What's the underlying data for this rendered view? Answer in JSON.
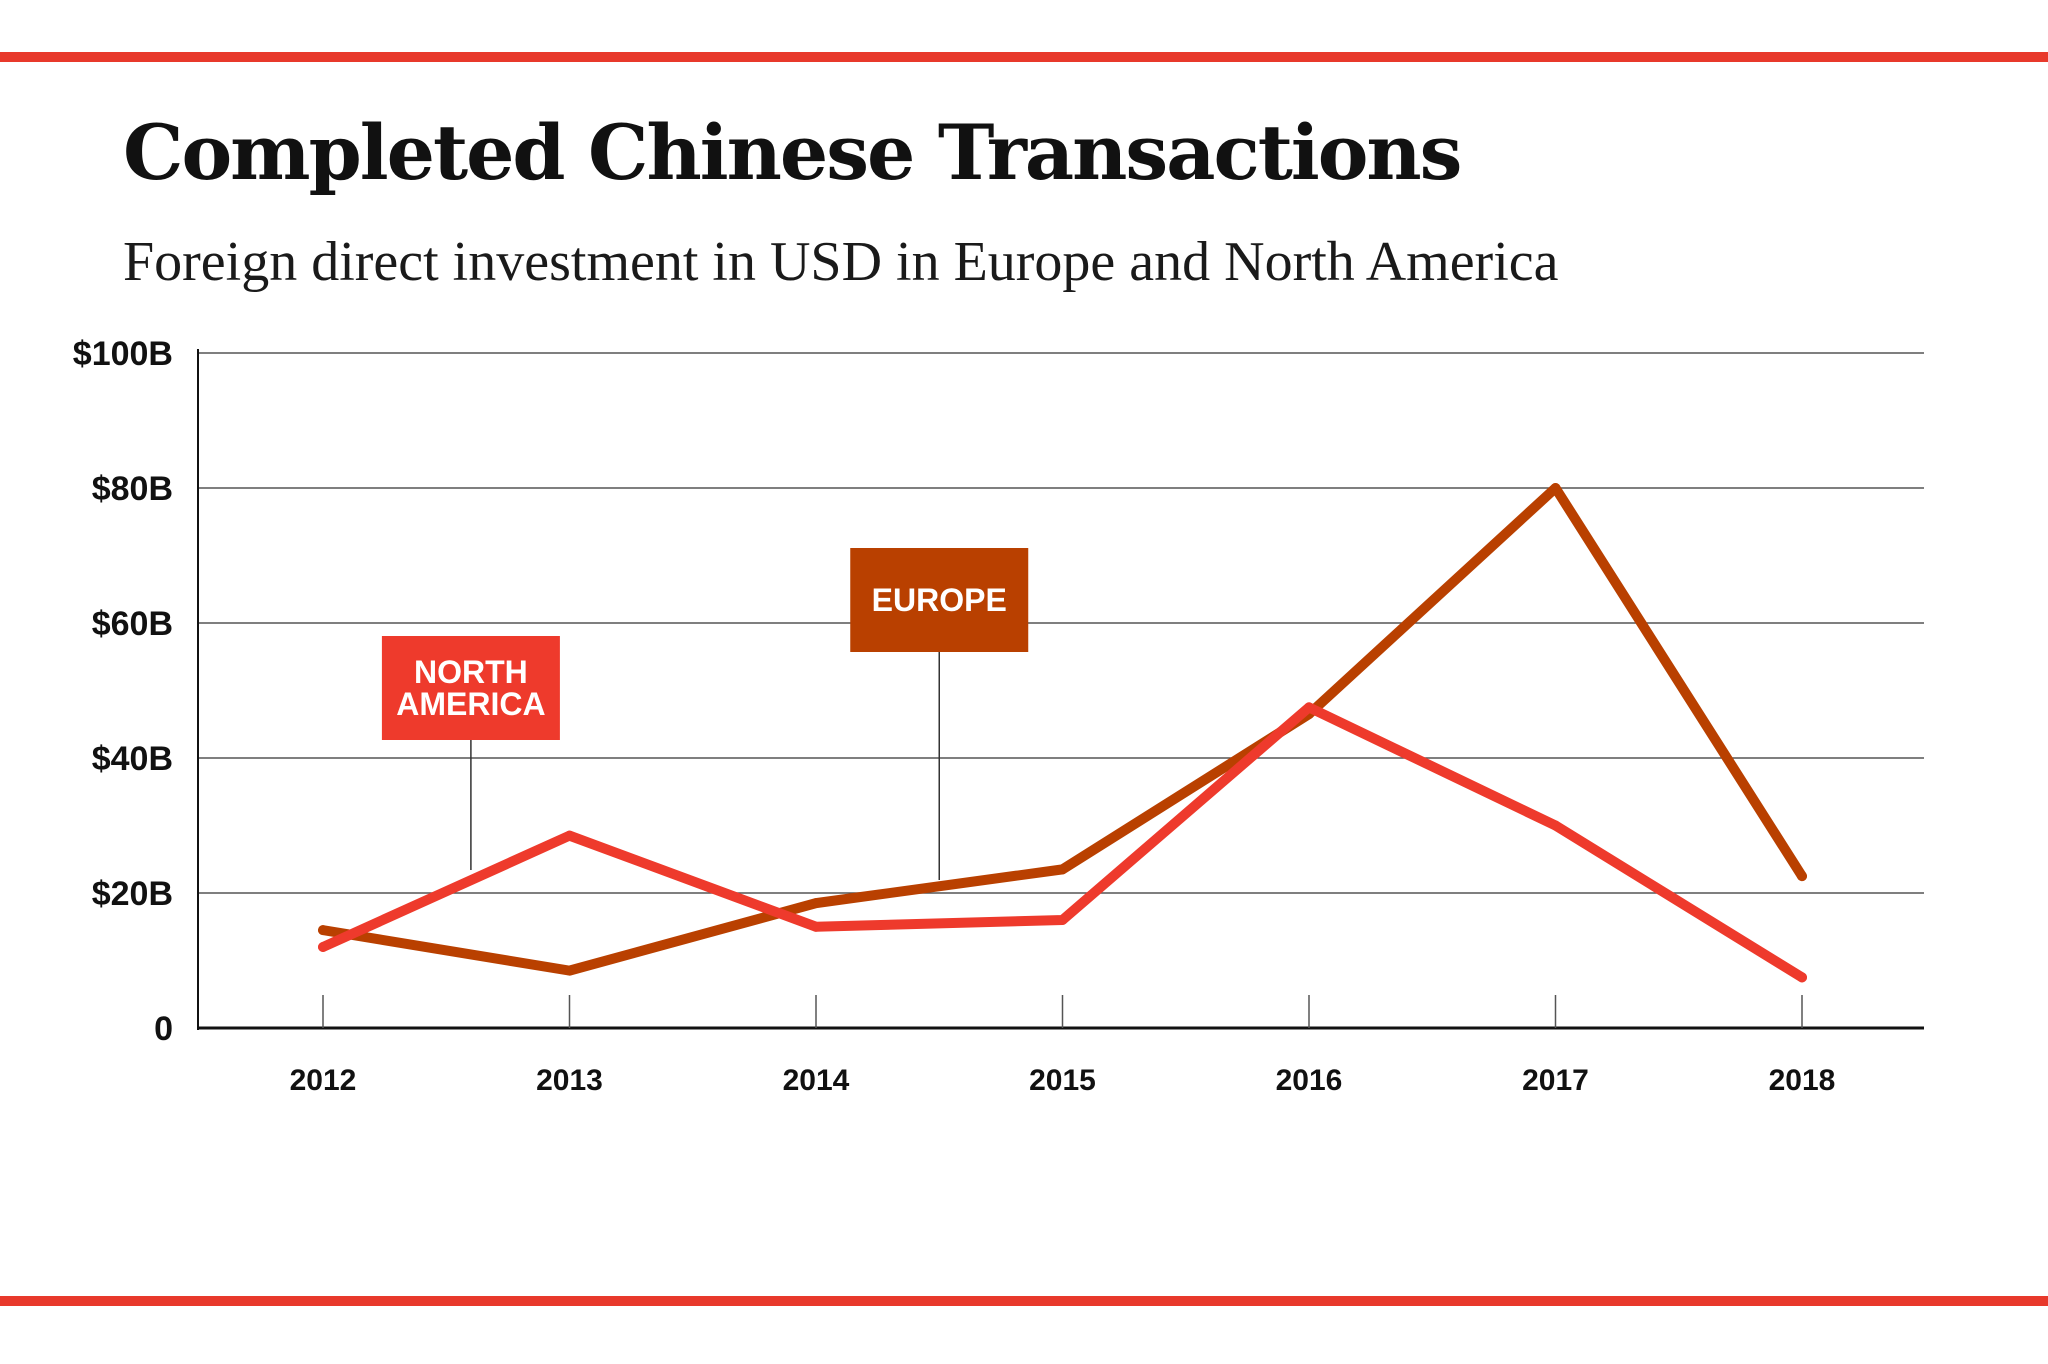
{
  "title": "Completed Chinese Transactions",
  "subtitle": "Foreign direct investment in USD in Europe and North America",
  "colors": {
    "rule": "#e8392b",
    "north_america": "#ee3a2c",
    "europe": "#b94000",
    "grid": "#555555",
    "text": "#111111"
  },
  "chart_data": {
    "type": "line",
    "title": "Completed Chinese Transactions",
    "subtitle": "Foreign direct investment in USD in Europe and North America",
    "xlabel": "",
    "ylabel": "",
    "ylim": [
      0,
      100
    ],
    "yticks": [
      0,
      20,
      40,
      60,
      80,
      100
    ],
    "ytick_labels": [
      "0",
      "$20B",
      "$40B",
      "$60B",
      "$80B",
      "$100B"
    ],
    "categories": [
      "2012",
      "2013",
      "2014",
      "2015",
      "2016",
      "2017",
      "2018"
    ],
    "grid": true,
    "series": [
      {
        "name": "North America",
        "label_lines": [
          "NORTH",
          "AMERICA"
        ],
        "label_x": 2012.6,
        "color": "#ee3a2c",
        "values": [
          12,
          28.5,
          15,
          16,
          47.5,
          30,
          7.5
        ]
      },
      {
        "name": "Europe",
        "label_lines": [
          "EUROPE"
        ],
        "label_x": 2014.5,
        "color": "#b94000",
        "values": [
          14.5,
          8.5,
          18.5,
          23.5,
          46.5,
          80,
          22.5
        ]
      }
    ]
  }
}
